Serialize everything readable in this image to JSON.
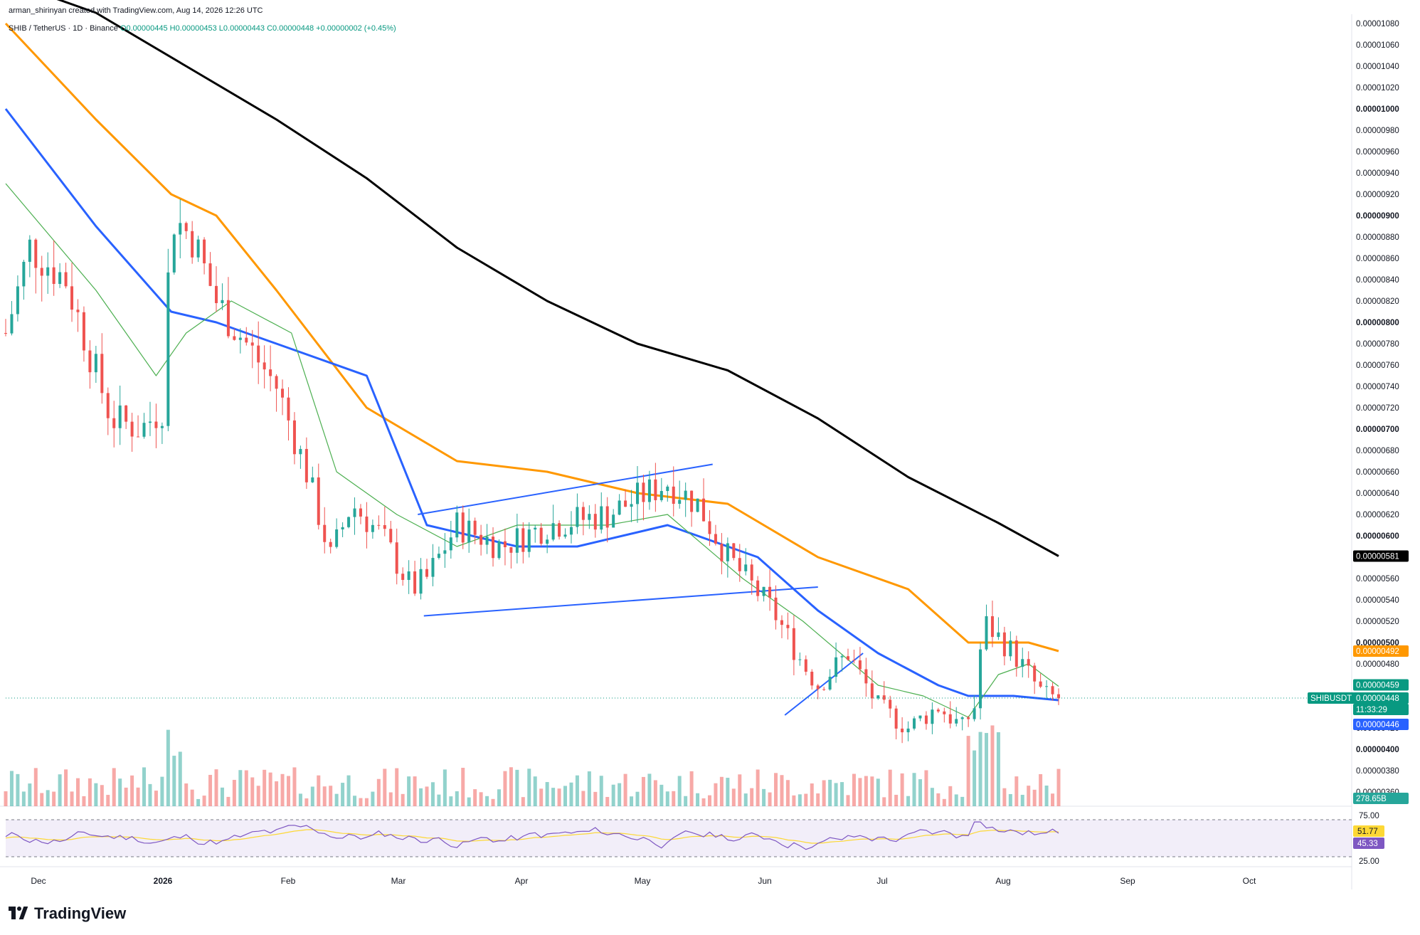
{
  "header": {
    "credit": "arman_shirinyan created with TradingView.com, Aug 14, 2026 12:26 UTC",
    "symbol_line": "SHIB / TetherUS · 1D · Binance",
    "ohlc": "O0.00000445 H0.00000453 L0.00000443 C0.00000448 +0.00000002 (+0.45%)"
  },
  "footer": {
    "brand": "TradingView"
  },
  "chart_data": {
    "type": "candlestick",
    "title": "SHIB / TetherUS · 1D · Binance",
    "timeframe": "1D",
    "y_range": [
      3.5e-06,
      1.085e-05
    ],
    "y_ticks": [
      "0.00001080",
      "0.00001060",
      "0.00001040",
      "0.00001020",
      "0.00001000",
      "0.00000980",
      "0.00000960",
      "0.00000940",
      "0.00000920",
      "0.00000900",
      "0.00000880",
      "0.00000860",
      "0.00000840",
      "0.00000820",
      "0.00000800",
      "0.00000780",
      "0.00000760",
      "0.00000740",
      "0.00000720",
      "0.00000700",
      "0.00000680",
      "0.00000660",
      "0.00000640",
      "0.00000620",
      "0.00000600",
      "0.00000580",
      "0.00000560",
      "0.00000540",
      "0.00000520",
      "0.00000500",
      "0.00000480",
      "0.00000460",
      "0.00000440",
      "0.00000420",
      "0.00000400",
      "0.00000380",
      "0.00000360"
    ],
    "x_labels": [
      "Dec",
      "2026",
      "Feb",
      "Mar",
      "Apr",
      "May",
      "Jun",
      "Jul",
      "Aug",
      "Sep",
      "Oct"
    ],
    "last_close": 4.48e-06,
    "price_tags": [
      {
        "label": "0.00000581",
        "color": "#000000",
        "value": 5.81e-06
      },
      {
        "label": "0.00000492",
        "color": "#ff9800",
        "value": 4.92e-06
      },
      {
        "label": "0.00000459",
        "color": "#089981",
        "value": 4.59e-06
      },
      {
        "label": "SHIBUSDT",
        "color": "#089981",
        "value": 4.48e-06
      },
      {
        "label": "0.00000448",
        "color": "#089981",
        "value": 4.48e-06
      },
      {
        "label": "11:33:29",
        "color": "#089981",
        "value": 4.48e-06
      },
      {
        "label": "0.00000446",
        "color": "#2962ff",
        "value": 4.46e-06
      },
      {
        "label": "278.65B",
        "color": "#26a69a",
        "value": 3.565e-06
      }
    ],
    "moving_averages": [
      {
        "color": "#000000",
        "points": [
          [
            0,
            1.12e-05
          ],
          [
            30,
            1.09e-05
          ],
          [
            60,
            1.04e-05
          ],
          [
            90,
            9.9e-06
          ],
          [
            120,
            9.35e-06
          ],
          [
            150,
            8.7e-06
          ],
          [
            180,
            8.2e-06
          ],
          [
            210,
            7.8e-06
          ],
          [
            240,
            7.55e-06
          ],
          [
            270,
            7.1e-06
          ],
          [
            300,
            6.55e-06
          ],
          [
            330,
            6.12e-06
          ],
          [
            350,
            5.81e-06
          ]
        ]
      },
      {
        "color": "#ff9800",
        "points": [
          [
            0,
            1.08e-05
          ],
          [
            30,
            9.9e-06
          ],
          [
            55,
            9.2e-06
          ],
          [
            70,
            9e-06
          ],
          [
            90,
            8.3e-06
          ],
          [
            120,
            7.2e-06
          ],
          [
            150,
            6.7e-06
          ],
          [
            180,
            6.6e-06
          ],
          [
            210,
            6.4e-06
          ],
          [
            240,
            6.3e-06
          ],
          [
            270,
            5.8e-06
          ],
          [
            300,
            5.5e-06
          ],
          [
            320,
            5e-06
          ],
          [
            340,
            5e-06
          ],
          [
            350,
            4.92e-06
          ]
        ]
      },
      {
        "color": "#2962ff",
        "points": [
          [
            0,
            1e-05
          ],
          [
            30,
            8.9e-06
          ],
          [
            55,
            8.1e-06
          ],
          [
            70,
            8e-06
          ],
          [
            90,
            7.8e-06
          ],
          [
            120,
            7.5e-06
          ],
          [
            140,
            6.1e-06
          ],
          [
            170,
            5.9e-06
          ],
          [
            190,
            5.9e-06
          ],
          [
            220,
            6.1e-06
          ],
          [
            250,
            5.8e-06
          ],
          [
            270,
            5.3e-06
          ],
          [
            290,
            4.9e-06
          ],
          [
            310,
            4.6e-06
          ],
          [
            320,
            4.5e-06
          ],
          [
            335,
            4.5e-06
          ],
          [
            350,
            4.46e-06
          ]
        ]
      },
      {
        "color": "#4caf50",
        "points": [
          [
            0,
            9.3e-06
          ],
          [
            30,
            8.3e-06
          ],
          [
            50,
            7.5e-06
          ],
          [
            60,
            7.9e-06
          ],
          [
            75,
            8.2e-06
          ],
          [
            95,
            7.9e-06
          ],
          [
            110,
            6.6e-06
          ],
          [
            130,
            6.2e-06
          ],
          [
            150,
            5.9e-06
          ],
          [
            170,
            6.1e-06
          ],
          [
            200,
            6.1e-06
          ],
          [
            220,
            6.2e-06
          ],
          [
            245,
            5.6e-06
          ],
          [
            265,
            5.2e-06
          ],
          [
            290,
            4.6e-06
          ],
          [
            305,
            4.5e-06
          ],
          [
            320,
            4.3e-06
          ],
          [
            330,
            4.7e-06
          ],
          [
            340,
            4.8e-06
          ],
          [
            350,
            4.59e-06
          ]
        ]
      }
    ],
    "trendlines": [
      {
        "from": [
          137,
          6.2e-06
        ],
        "to": [
          235,
          6.67e-06
        ]
      },
      {
        "from": [
          139,
          5.25e-06
        ],
        "to": [
          270,
          5.52e-06
        ]
      },
      {
        "from": [
          259,
          4.32e-06
        ],
        "to": [
          285,
          4.9e-06
        ]
      }
    ],
    "rsi": {
      "levels": [
        "75.00",
        "25.00"
      ],
      "rsi_value": "45.33",
      "ma_value": "51.77",
      "rsi_color": "#7e57c2",
      "ma_color": "#fdd835"
    },
    "volume_label": "278.65B"
  }
}
